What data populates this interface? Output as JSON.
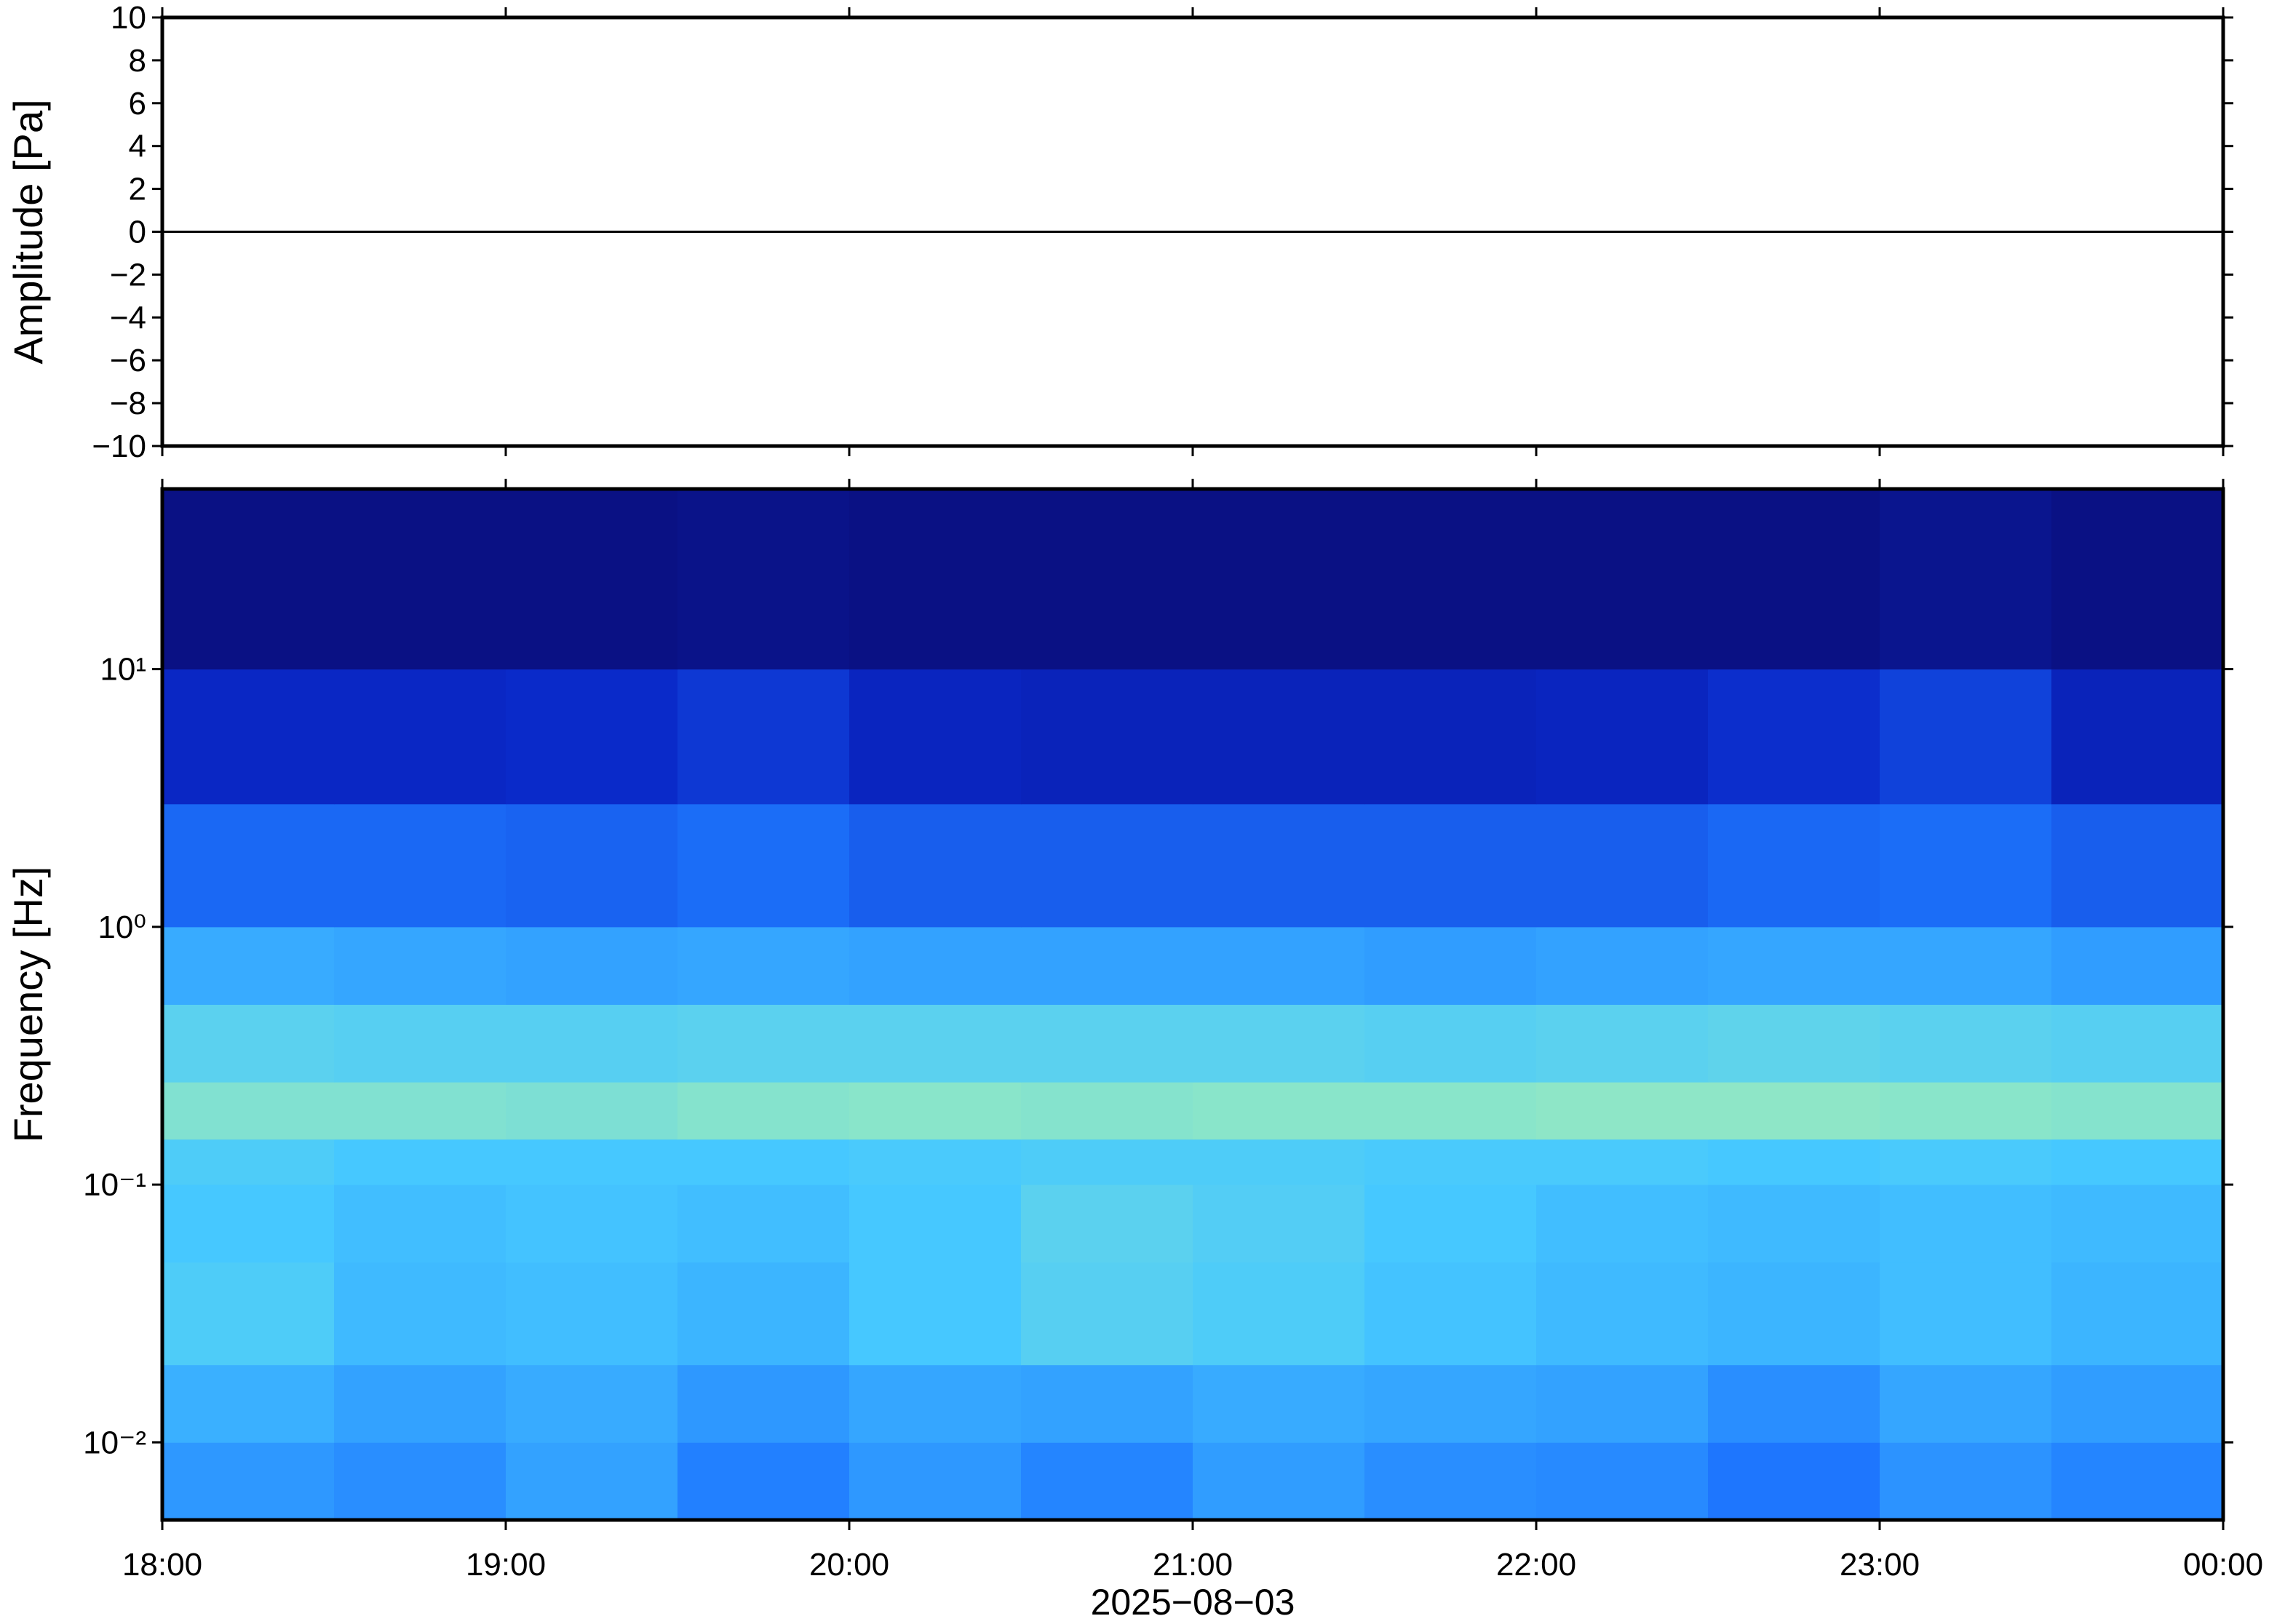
{
  "chart_data": [
    {
      "type": "line",
      "ylabel": "Amplitude [Pa]",
      "xlim": [
        18,
        24
      ],
      "ylim": [
        -10,
        10
      ],
      "yticks": [
        {
          "value": -10,
          "label": "−10"
        },
        {
          "value": -8,
          "label": "−8"
        },
        {
          "value": -6,
          "label": "−6"
        },
        {
          "value": -4,
          "label": "−4"
        },
        {
          "value": -2,
          "label": "−2"
        },
        0,
        2,
        4,
        6,
        8,
        10
      ],
      "x": [
        18,
        24
      ],
      "values": [
        0,
        0
      ],
      "color": "#000000"
    },
    {
      "type": "heatmap",
      "ylabel": "Frequency [Hz]",
      "xlabel": "2025−08−03",
      "log_y": true,
      "xlim": [
        18,
        24
      ],
      "ylim": [
        0.005,
        50
      ],
      "xticks": [
        {
          "value": 18,
          "label": "18:00"
        },
        {
          "value": 19,
          "label": "19:00"
        },
        {
          "value": 20,
          "label": "20:00"
        },
        {
          "value": 21,
          "label": "21:00"
        },
        {
          "value": 22,
          "label": "22:00"
        },
        {
          "value": 23,
          "label": "23:00"
        },
        {
          "value": 24,
          "label": "00:00"
        }
      ],
      "yticks": [
        {
          "value": 0.01,
          "label": "10⁻²"
        },
        {
          "value": 0.1,
          "label": "10⁻¹"
        },
        {
          "value": 1,
          "label": "10⁰"
        },
        {
          "value": 10,
          "label": "10¹"
        }
      ],
      "time_bins": [
        18,
        18.5,
        19,
        19.5,
        20,
        20.5,
        21,
        21.5,
        22,
        22.5,
        23,
        23.5,
        24
      ],
      "freq_bins": [
        0.005,
        0.01,
        0.02,
        0.05,
        0.1,
        0.15,
        0.25,
        0.5,
        1,
        3,
        10,
        50
      ],
      "colormap": [
        "#0a0a6e",
        "#0a28c8",
        "#1e78ff",
        "#46c8ff",
        "#8ce6c8",
        "#f0e68c",
        "#ff9650"
      ],
      "z": [
        [
          0.4,
          0.38,
          0.42,
          0.35,
          0.4,
          0.36,
          0.41,
          0.38,
          0.37,
          0.33,
          0.39,
          0.36
        ],
        [
          0.45,
          0.42,
          0.44,
          0.4,
          0.43,
          0.42,
          0.44,
          0.43,
          0.42,
          0.38,
          0.43,
          0.41
        ],
        [
          0.52,
          0.47,
          0.48,
          0.46,
          0.5,
          0.54,
          0.52,
          0.49,
          0.47,
          0.46,
          0.48,
          0.46
        ],
        [
          0.5,
          0.48,
          0.49,
          0.48,
          0.5,
          0.55,
          0.53,
          0.5,
          0.48,
          0.47,
          0.48,
          0.47
        ],
        [
          0.52,
          0.5,
          0.5,
          0.5,
          0.51,
          0.52,
          0.52,
          0.51,
          0.51,
          0.5,
          0.51,
          0.5
        ],
        [
          0.64,
          0.64,
          0.63,
          0.65,
          0.66,
          0.65,
          0.66,
          0.66,
          0.67,
          0.67,
          0.66,
          0.65
        ],
        [
          0.55,
          0.54,
          0.54,
          0.55,
          0.55,
          0.55,
          0.55,
          0.54,
          0.55,
          0.56,
          0.55,
          0.54
        ],
        [
          0.44,
          0.43,
          0.42,
          0.43,
          0.42,
          0.42,
          0.42,
          0.41,
          0.42,
          0.43,
          0.43,
          0.41
        ],
        [
          0.3,
          0.3,
          0.29,
          0.31,
          0.28,
          0.28,
          0.28,
          0.28,
          0.28,
          0.3,
          0.31,
          0.28
        ],
        [
          0.16,
          0.16,
          0.17,
          0.2,
          0.15,
          0.14,
          0.14,
          0.14,
          0.15,
          0.18,
          0.22,
          0.14
        ],
        [
          0.04,
          0.04,
          0.04,
          0.05,
          0.04,
          0.04,
          0.04,
          0.04,
          0.04,
          0.04,
          0.06,
          0.04
        ]
      ]
    }
  ]
}
